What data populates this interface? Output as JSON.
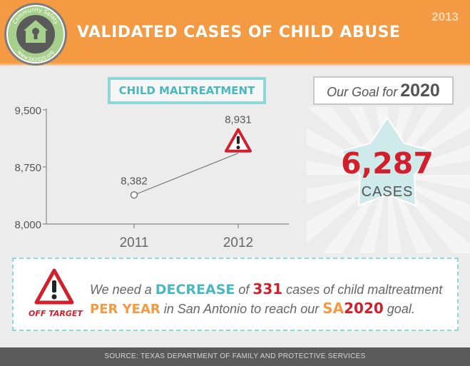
{
  "header": {
    "title": "VALIDATED CASES OF CHILD ABUSE",
    "year": "2013",
    "logo_top_text": "Community Safety",
    "logo_bottom_text": "www.SA2020.org"
  },
  "chart_data": {
    "type": "line",
    "title": "CHILD MALTREATMENT",
    "categories": [
      "2011",
      "2012"
    ],
    "values": [
      8382,
      8931
    ],
    "value_labels": [
      "8,382",
      "8,931"
    ],
    "ylim": [
      8000,
      9500
    ],
    "y_ticks": [
      8000,
      8750,
      9500
    ],
    "y_tick_labels": [
      "8,000",
      "8,750",
      "9,500"
    ],
    "xlabel": "",
    "ylabel": "",
    "grid": false
  },
  "goal": {
    "label": "Our Goal for",
    "year": "2020",
    "value": "6,287",
    "unit": "CASES"
  },
  "message": {
    "off_target": "OFF TARGET",
    "line1_a": "We need a ",
    "line1_decrease": "DECREASE",
    "line1_b": " of ",
    "line1_num": "331",
    "line1_c": " cases of child maltreatment",
    "line2_peryear": "PER YEAR",
    "line2_a": " in San Antonio to reach our ",
    "line2_sa": "SA",
    "line2_2020": "2020",
    "line2_b": " goal."
  },
  "footer": {
    "source": "SOURCE: TEXAS DEPARTMENT OF FAMILY AND PROTECTIVE SERVICES"
  },
  "colors": {
    "orange": "#f39a43",
    "red": "#d21f2b",
    "teal": "#4ab8c0",
    "gray": "#555555"
  }
}
